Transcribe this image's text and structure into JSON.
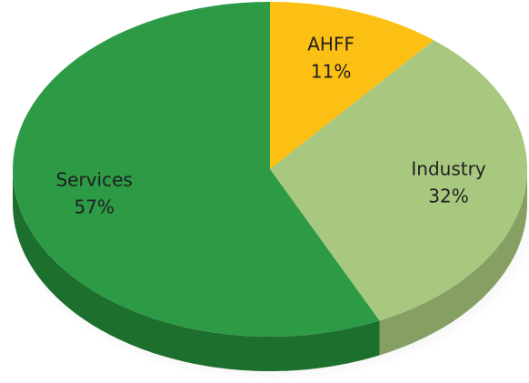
{
  "chart_data": {
    "type": "pie3d",
    "categories": [
      "AHFF",
      "Industry",
      "Services"
    ],
    "values": [
      11,
      32,
      57
    ],
    "value_labels": [
      "11%",
      "32%",
      "57%"
    ],
    "colors": [
      "#fcc015",
      "#a8c880",
      "#2d9a46"
    ],
    "side_colors": [
      "#d9a20f",
      "#86a064",
      "#1d6f2d"
    ]
  }
}
